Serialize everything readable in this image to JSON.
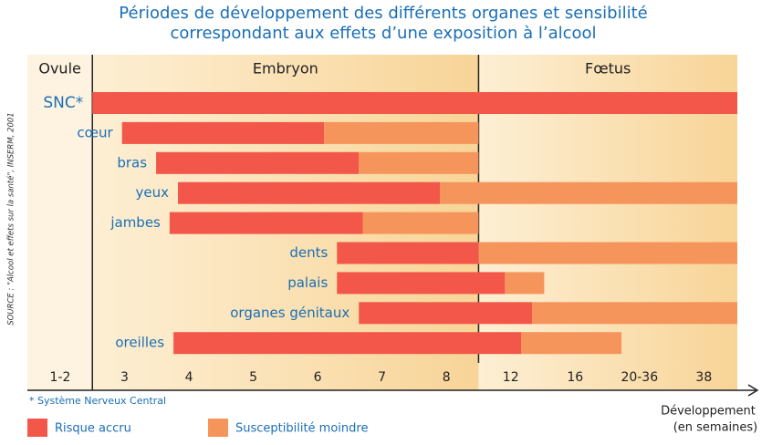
{
  "chart_data": {
    "type": "gantt",
    "title": "Périodes de développement des différents organes et sensibilité",
    "subtitle": "correspondant aux effets d’une exposition à l’alcool",
    "source": "SOURCE : \"Alcool et effets sur la santé\", INSERM, 2001",
    "footnote": "* Système Nerveux Central",
    "x_label": [
      "Développement",
      "(en semaines)"
    ],
    "xlim": [
      -0.51,
      10.52
    ],
    "xticks": [
      {
        "value": 0,
        "label": "1-2"
      },
      {
        "value": 1,
        "label": "3"
      },
      {
        "value": 2,
        "label": "4"
      },
      {
        "value": 3,
        "label": "5"
      },
      {
        "value": 4,
        "label": "6"
      },
      {
        "value": 5,
        "label": "7"
      },
      {
        "value": 6,
        "label": "8"
      },
      {
        "value": 7,
        "label": "12"
      },
      {
        "value": 8,
        "label": "16"
      },
      {
        "value": 9,
        "label": "20-36"
      },
      {
        "value": 10,
        "label": "38"
      }
    ],
    "periods": [
      {
        "name": "Ovule",
        "start": -0.51,
        "end": 0.5
      },
      {
        "name": "Embryon",
        "start": 0.5,
        "end": 6.5
      },
      {
        "name": "Fœtus",
        "start": 6.5,
        "end": 10.52
      }
    ],
    "series": [
      {
        "name": "Risque accru",
        "color": "#f2574a"
      },
      {
        "name": "Susceptibilité moindre",
        "color": "#f5955c"
      }
    ],
    "rows": [
      {
        "label": "SNC*",
        "start": 0.5,
        "risk_end": 10.52,
        "susceptibility_end": null
      },
      {
        "label": "cœur",
        "start": 0.96,
        "risk_end": 4.1,
        "susceptibility_end": 6.5
      },
      {
        "label": "bras",
        "start": 1.49,
        "risk_end": 4.64,
        "susceptibility_end": 6.5
      },
      {
        "label": "yeux",
        "start": 1.83,
        "risk_end": 5.9,
        "susceptibility_end": 10.52
      },
      {
        "label": "jambes",
        "start": 1.7,
        "risk_end": 4.7,
        "susceptibility_end": 6.5
      },
      {
        "label": "dents",
        "start": 4.3,
        "risk_end": 6.5,
        "susceptibility_end": 10.52
      },
      {
        "label": "palais",
        "start": 4.3,
        "risk_end": 6.91,
        "susceptibility_end": 7.52
      },
      {
        "label": "organes génitaux",
        "start": 4.64,
        "risk_end": 7.33,
        "susceptibility_end": 10.52
      },
      {
        "label": "oreilles",
        "start": 1.76,
        "risk_end": 7.16,
        "susceptibility_end": 8.72
      }
    ]
  }
}
